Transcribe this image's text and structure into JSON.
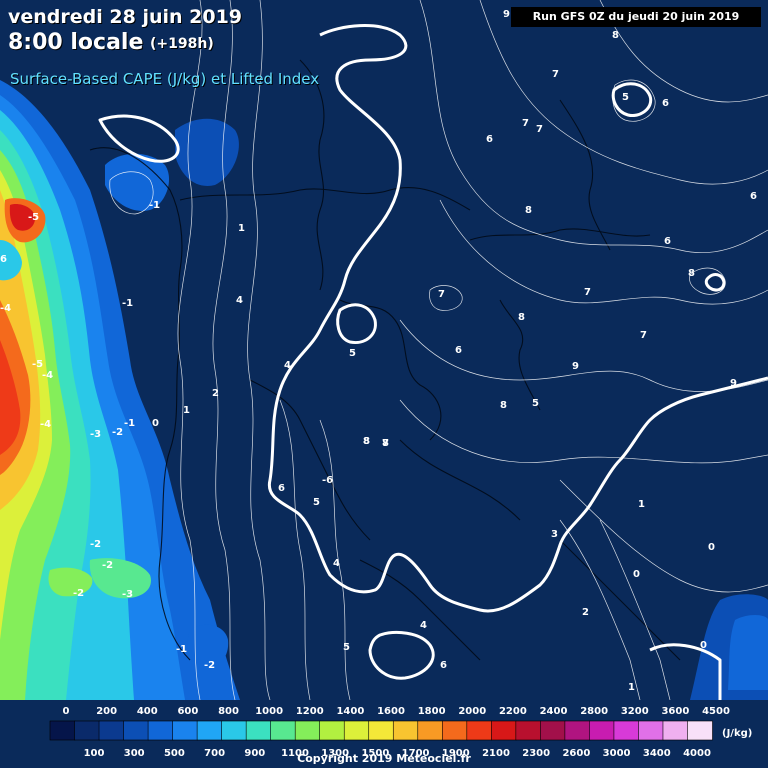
{
  "header": {
    "date": "vendredi 28 juin 2019",
    "time": "8:00 locale",
    "offset": "(+198h)",
    "field": "Surface-Based CAPE (J/kg) et Lifted Index",
    "run": "Run GFS 0Z du jeudi 20 juin 2019"
  },
  "legend": {
    "top_labels": [
      "0",
      "200",
      "400",
      "600",
      "800",
      "1000",
      "1200",
      "1400",
      "1600",
      "1800",
      "2000",
      "2200",
      "2400",
      "2800",
      "3200",
      "3600",
      "4500"
    ],
    "bottom_labels": [
      "100",
      "300",
      "500",
      "700",
      "900",
      "1100",
      "1300",
      "1500",
      "1700",
      "1900",
      "2100",
      "2300",
      "2600",
      "3000",
      "3400",
      "4000"
    ],
    "unit": "(J/kg)",
    "colors": [
      "#05154a",
      "#0a2a6a",
      "#0b3a8f",
      "#0c4fb5",
      "#1167d8",
      "#1a83ee",
      "#20a6f5",
      "#2ac8e8",
      "#3be0c0",
      "#58e890",
      "#84ee5a",
      "#b2f040",
      "#dcf03a",
      "#f4e838",
      "#f8c430",
      "#f89a24",
      "#f46a1c",
      "#ee3a18",
      "#d81818",
      "#b8102e",
      "#a2104a",
      "#b01480",
      "#c81cb0",
      "#d83ad8",
      "#e070e8",
      "#f0b0f0",
      "#f8e0f8"
    ]
  },
  "copyright": "Copyright 2019 Meteociel.fr",
  "map": {
    "ocean_color": "#0a2a5a",
    "land_color": "#092c60",
    "lifted_index_labels": [
      "9",
      "8",
      "7",
      "5",
      "6",
      "6",
      "7",
      "7",
      "6",
      "8",
      "6",
      "-1",
      "1",
      "8",
      "6",
      "9",
      "-5",
      "7",
      "8",
      "7",
      "-4",
      "4",
      "-1",
      "5",
      "6",
      "7",
      "9",
      "8",
      "5",
      "-5",
      "2",
      "-4",
      "8",
      "1",
      "0",
      "4",
      "-1",
      "-3",
      "-2",
      "8",
      "8",
      "7",
      "-4",
      "-6",
      "6",
      "5",
      "1",
      "-2",
      "-2",
      "3",
      "0",
      "-3",
      "4",
      "0",
      "-2",
      "2",
      "4",
      "-1",
      "-2",
      "5",
      "1",
      "6",
      "0"
    ]
  }
}
